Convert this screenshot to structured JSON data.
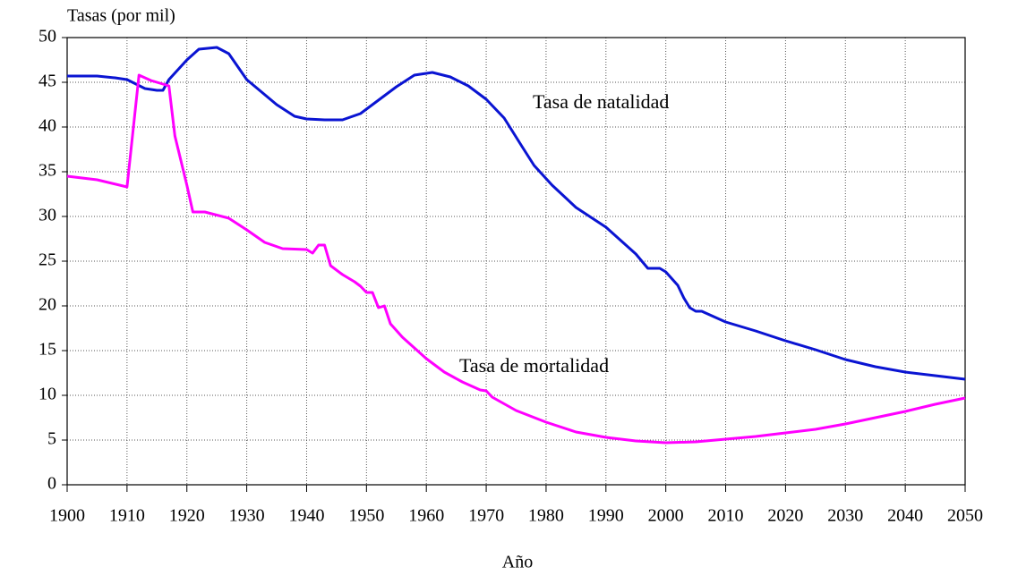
{
  "chart_data": {
    "type": "line",
    "y_label": "Tasas (por mil)",
    "x_label": "Año",
    "xlim": [
      1900,
      2050
    ],
    "xticks": [
      1900,
      1910,
      1920,
      1930,
      1940,
      1950,
      1960,
      1970,
      1980,
      1990,
      2000,
      2010,
      2020,
      2030,
      2040,
      2050
    ],
    "ylim": [
      0,
      50
    ],
    "yticks": [
      0,
      5,
      10,
      15,
      20,
      25,
      30,
      35,
      40,
      45,
      50
    ],
    "grid": true,
    "series": [
      {
        "name": "Tasa de natalidad",
        "color": "#0a14d2",
        "x": [
          1900,
          1905,
          1908,
          1910,
          1913,
          1915,
          1916,
          1917,
          1920,
          1922,
          1925,
          1927,
          1930,
          1935,
          1938,
          1940,
          1943,
          1946,
          1949,
          1952,
          1955,
          1958,
          1961,
          1964,
          1967,
          1970,
          1973,
          1976,
          1978,
          1981,
          1985,
          1990,
          1993,
          1995,
          1997,
          1999,
          2000,
          2002,
          2003,
          2004,
          2005,
          2006,
          2010,
          2015,
          2020,
          2025,
          2030,
          2035,
          2040,
          2045,
          2050
        ],
        "values": [
          45.7,
          45.7,
          45.5,
          45.3,
          44.3,
          44.1,
          44.1,
          45.3,
          47.5,
          48.7,
          48.9,
          48.2,
          45.3,
          42.5,
          41.2,
          40.9,
          40.8,
          40.8,
          41.5,
          43,
          44.5,
          45.8,
          46.1,
          45.6,
          44.6,
          43.1,
          41,
          37.8,
          35.7,
          33.5,
          31,
          28.8,
          27,
          25.8,
          24.2,
          24.2,
          23.8,
          22.3,
          20.9,
          19.8,
          19.4,
          19.4,
          18.2,
          17.2,
          16.1,
          15.1,
          14,
          13.2,
          12.6,
          12.2,
          11.8
        ]
      },
      {
        "name": "Tasa de mortalidad",
        "color": "#ff00ff",
        "x": [
          1900,
          1905,
          1910,
          1912,
          1914,
          1917,
          1918,
          1920,
          1921,
          1923,
          1927,
          1930,
          1933,
          1936,
          1940,
          1941,
          1942,
          1943,
          1944,
          1946,
          1948,
          1949,
          1950,
          1951,
          1952,
          1953,
          1954,
          1956,
          1958,
          1960,
          1963,
          1966,
          1969,
          1970,
          1971,
          1975,
          1980,
          1985,
          1990,
          1995,
          2000,
          2005,
          2010,
          2015,
          2020,
          2025,
          2030,
          2035,
          2040,
          2045,
          2050
        ],
        "values": [
          34.5,
          34.1,
          33.3,
          45.8,
          45.2,
          44.6,
          39,
          33.5,
          30.5,
          30.5,
          29.8,
          28.5,
          27.1,
          26.4,
          26.3,
          25.9,
          26.8,
          26.8,
          24.5,
          23.5,
          22.7,
          22.2,
          21.5,
          21.5,
          19.8,
          20,
          18,
          16.5,
          15.3,
          14.1,
          12.6,
          11.5,
          10.6,
          10.5,
          9.8,
          8.3,
          7,
          5.9,
          5.3,
          4.9,
          4.7,
          4.8,
          5.1,
          5.4,
          5.8,
          6.2,
          6.8,
          7.5,
          8.2,
          9,
          9.7
        ]
      }
    ]
  }
}
